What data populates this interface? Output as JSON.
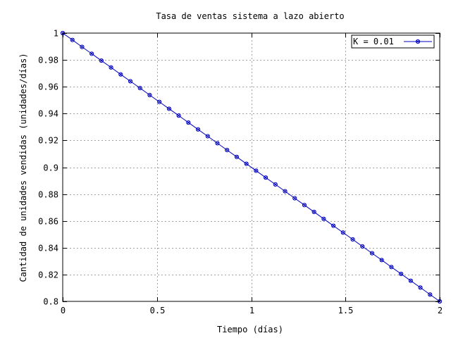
{
  "chart_data": {
    "type": "line",
    "title": "Tasa de ventas sistema a lazo abierto",
    "xlabel": "Tiempo (días)",
    "ylabel": "Cantidad de unidades vendidas (unidades/días)",
    "xlim": [
      0,
      2
    ],
    "ylim": [
      0.8,
      1
    ],
    "xticks": [
      0,
      0.5,
      1,
      1.5,
      2
    ],
    "xtick_labels": [
      "0",
      "0.5",
      "1",
      "1.5",
      "2"
    ],
    "yticks": [
      0.8,
      0.82,
      0.84,
      0.86,
      0.88,
      0.9,
      0.92,
      0.94,
      0.96,
      0.98,
      1
    ],
    "ytick_labels": [
      "0.8",
      "0.82",
      "0.84",
      "0.86",
      "0.88",
      "0.9",
      "0.92",
      "0.94",
      "0.96",
      "0.98",
      "1"
    ],
    "grid": true,
    "legend_position": "top-right",
    "series": [
      {
        "name": "K = 0.01",
        "color": "#0000c0",
        "marker": "circle-cross",
        "x": [
          0,
          0.0513,
          0.1026,
          0.1538,
          0.2051,
          0.2564,
          0.3077,
          0.359,
          0.4103,
          0.4615,
          0.5128,
          0.5641,
          0.6154,
          0.6667,
          0.7179,
          0.7692,
          0.8205,
          0.8718,
          0.9231,
          0.9744,
          1.0256,
          1.0769,
          1.1282,
          1.1795,
          1.2308,
          1.2821,
          1.3333,
          1.3846,
          1.4359,
          1.4872,
          1.5385,
          1.5897,
          1.641,
          1.6923,
          1.7436,
          1.7949,
          1.8462,
          1.8974,
          1.9487,
          2.0
        ],
        "y": [
          1.0,
          0.9949,
          0.9897,
          0.9846,
          0.9795,
          0.9744,
          0.9692,
          0.9641,
          0.959,
          0.9538,
          0.9487,
          0.9436,
          0.9385,
          0.9333,
          0.9282,
          0.9231,
          0.9179,
          0.9128,
          0.9077,
          0.9026,
          0.8974,
          0.8923,
          0.8872,
          0.8821,
          0.8769,
          0.8718,
          0.8667,
          0.8615,
          0.8564,
          0.8513,
          0.8462,
          0.841,
          0.8359,
          0.8308,
          0.8256,
          0.8205,
          0.8154,
          0.8103,
          0.8051,
          0.8
        ]
      }
    ]
  }
}
